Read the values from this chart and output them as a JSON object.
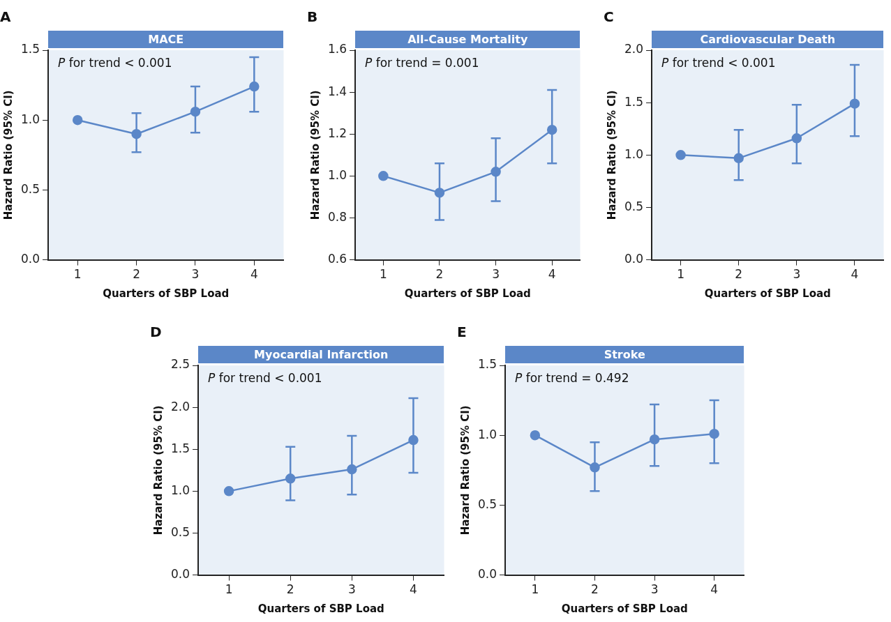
{
  "chart_data": [
    {
      "type": "line",
      "title": "MACE",
      "xlabel": "Quarters of SBP Load",
      "ylabel": "Hazard Ratio (95% CI)",
      "annotations": [
        "A",
        "P for trend < 0.001"
      ],
      "categories": [
        "1",
        "2",
        "3",
        "4"
      ],
      "values": [
        1.0,
        0.9,
        1.06,
        1.24
      ],
      "errors": [
        null,
        [
          0.77,
          1.05
        ],
        [
          0.91,
          1.24
        ],
        [
          1.06,
          1.45
        ]
      ],
      "color": "#5b87c8",
      "marker": "circle",
      "ylim": [
        0,
        1.5
      ],
      "yticks": [
        {
          "value": 0,
          "label": "0.0"
        },
        {
          "value": 0.5,
          "label": "0.5"
        },
        {
          "value": 1,
          "label": "1.0"
        },
        {
          "value": 1.5,
          "label": "1.5"
        }
      ]
    },
    {
      "type": "line",
      "title": "All-Cause Mortality",
      "xlabel": "Quarters of SBP Load",
      "ylabel": "Hazard Ratio (95% CI)",
      "annotations": [
        "B",
        "P for trend = 0.001"
      ],
      "categories": [
        "1",
        "2",
        "3",
        "4"
      ],
      "values": [
        1.0,
        0.92,
        1.02,
        1.22
      ],
      "errors": [
        null,
        [
          0.79,
          1.06
        ],
        [
          0.88,
          1.18
        ],
        [
          1.06,
          1.41
        ]
      ],
      "color": "#5b87c8",
      "marker": "circle",
      "ylim": [
        0.6,
        1.6
      ],
      "yticks": [
        {
          "value": 0.6,
          "label": "0.6"
        },
        {
          "value": 0.8,
          "label": "0.8"
        },
        {
          "value": 1,
          "label": "1.0"
        },
        {
          "value": 1.2,
          "label": "1.2"
        },
        {
          "value": 1.4,
          "label": "1.4"
        },
        {
          "value": 1.6,
          "label": "1.6"
        }
      ]
    },
    {
      "type": "line",
      "title": "Cardiovascular Death",
      "xlabel": "Quarters of SBP Load",
      "ylabel": "Hazard Ratio (95% CI)",
      "annotations": [
        "C",
        "P for trend < 0.001"
      ],
      "categories": [
        "1",
        "2",
        "3",
        "4"
      ],
      "values": [
        1.0,
        0.97,
        1.16,
        1.49
      ],
      "errors": [
        null,
        [
          0.76,
          1.24
        ],
        [
          0.92,
          1.48
        ],
        [
          1.18,
          1.86
        ]
      ],
      "color": "#5b87c8",
      "marker": "circle",
      "ylim": [
        0,
        2
      ],
      "yticks": [
        {
          "value": 0,
          "label": "0.0"
        },
        {
          "value": 0.5,
          "label": "0.5"
        },
        {
          "value": 1,
          "label": "1.0"
        },
        {
          "value": 1.5,
          "label": "1.5"
        },
        {
          "value": 2,
          "label": "2.0"
        }
      ]
    },
    {
      "type": "line",
      "title": "Myocardial Infarction",
      "xlabel": "Quarters of SBP Load",
      "ylabel": "Hazard Ratio (95% CI)",
      "annotations": [
        "D",
        "P for trend < 0.001"
      ],
      "categories": [
        "1",
        "2",
        "3",
        "4"
      ],
      "values": [
        1.0,
        1.15,
        1.26,
        1.61
      ],
      "errors": [
        null,
        [
          0.89,
          1.53
        ],
        [
          0.96,
          1.66
        ],
        [
          1.22,
          2.11
        ]
      ],
      "color": "#5b87c8",
      "marker": "circle",
      "ylim": [
        0,
        2.5
      ],
      "yticks": [
        {
          "value": 0,
          "label": "0.0"
        },
        {
          "value": 0.5,
          "label": "0.5"
        },
        {
          "value": 1,
          "label": "1.0"
        },
        {
          "value": 1.5,
          "label": "1.5"
        },
        {
          "value": 2,
          "label": "2.0"
        },
        {
          "value": 2.5,
          "label": "2.5"
        }
      ]
    },
    {
      "type": "line",
      "title": "Stroke",
      "xlabel": "Quarters of SBP Load",
      "ylabel": "Hazard Ratio (95% CI)",
      "annotations": [
        "E",
        "P for trend = 0.492"
      ],
      "categories": [
        "1",
        "2",
        "3",
        "4"
      ],
      "values": [
        1.0,
        0.77,
        0.97,
        1.01
      ],
      "errors": [
        null,
        [
          0.6,
          0.95
        ],
        [
          0.78,
          1.22
        ],
        [
          0.8,
          1.25
        ]
      ],
      "color": "#5b87c8",
      "marker": "circle",
      "ylim": [
        0,
        1.5
      ],
      "yticks": [
        {
          "value": 0,
          "label": "0.0"
        },
        {
          "value": 0.5,
          "label": "0.5"
        },
        {
          "value": 1,
          "label": "1.0"
        },
        {
          "value": 1.5,
          "label": "1.5"
        }
      ]
    }
  ]
}
